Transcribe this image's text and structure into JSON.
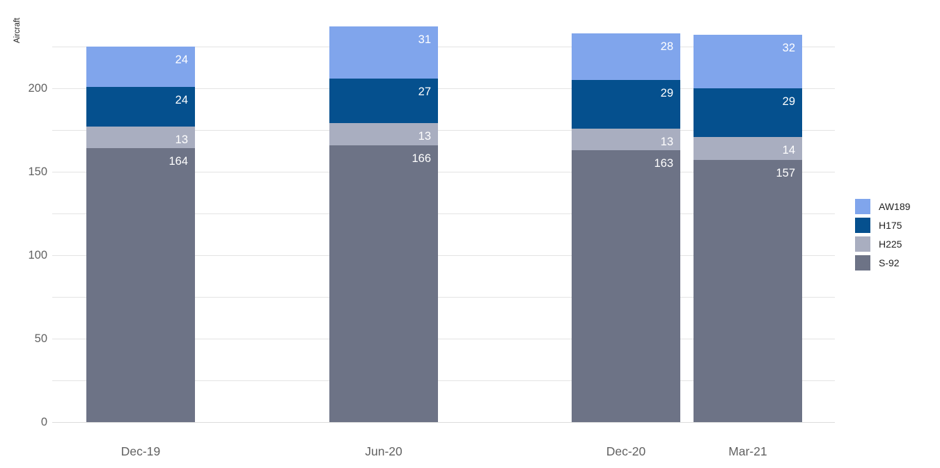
{
  "chart": {
    "ylabel": "Aircraft"
  },
  "chart_data": {
    "type": "bar",
    "stacked": true,
    "title": "",
    "xlabel": "",
    "ylabel": "Aircraft",
    "categories": [
      "Dec-19",
      "Jun-20",
      "Dec-20",
      "Mar-21"
    ],
    "x_month_offsets": [
      0,
      6,
      12,
      15
    ],
    "series": [
      {
        "name": "AW189",
        "color": "#80A5EC",
        "values": [
          24,
          31,
          28,
          32
        ]
      },
      {
        "name": "H175",
        "color": "#05508E",
        "values": [
          24,
          27,
          29,
          29
        ]
      },
      {
        "name": "H225",
        "color": "#A9AEC0",
        "values": [
          13,
          13,
          13,
          14
        ]
      },
      {
        "name": "S-92",
        "color": "#6D7386",
        "values": [
          164,
          166,
          163,
          157
        ]
      }
    ],
    "stack_order_bottom_to_top": [
      "S-92",
      "H225",
      "H175",
      "AW189"
    ],
    "totals": [
      225,
      237,
      233,
      232
    ],
    "ylim": [
      0,
      240
    ],
    "yticks": [
      0,
      50,
      100,
      150,
      200
    ],
    "minor_gridline_step": 25,
    "max_gridline_value": 225,
    "grid": true,
    "legend_position": "right",
    "style": {
      "background": "#FFFFFF",
      "gridline": "#E3E3E3",
      "axis_line": "#DCDCDC",
      "tick_label": "#616161",
      "value_label": "#FFFFFF",
      "legend_label": "#212121",
      "axis_title": "#212121"
    }
  }
}
